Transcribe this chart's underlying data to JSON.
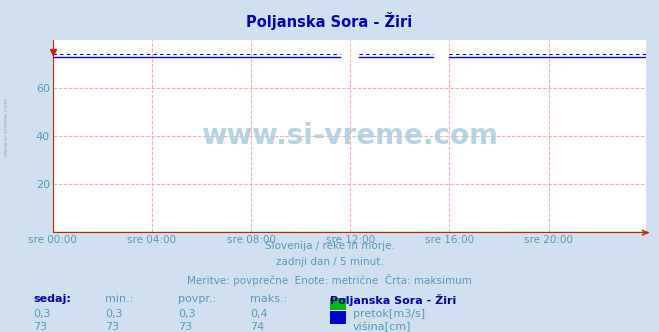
{
  "title": "Poljanska Sora - Žiri",
  "title_color": "#0000bb",
  "bg_color": "#d0e0f0",
  "plot_bg_color": "#ffffff",
  "grid_color": "#ffaaaa",
  "xlabel_color": "#5599bb",
  "ylabel_color": "#5599bb",
  "axis_color": "#cc2200",
  "watermark": "www.si-vreme.com",
  "watermark_color": "#aaccdd",
  "subtitle_line1": "Slovenija / reke in morje.",
  "subtitle_line2": "zadnji dan / 5 minut.",
  "subtitle_line3": "Meritve: povprečne  Enote: metrične  Črta: maksimum",
  "subtitle_color": "#5599bb",
  "n_points": 288,
  "flow_value": 0.3,
  "flow_max": 0.4,
  "flow_color": "#00bb00",
  "height_value": 73,
  "height_max": 74,
  "height_color": "#0000cc",
  "ylim": [
    0,
    80
  ],
  "yticks": [
    20,
    40,
    60
  ],
  "xtick_labels": [
    "sre 00:00",
    "sre 04:00",
    "sre 08:00",
    "sre 12:00",
    "sre 16:00",
    "sre 20:00"
  ],
  "xtick_positions": [
    0,
    48,
    96,
    144,
    192,
    240
  ],
  "legend_title": "Poljanska Sora - Žiri",
  "legend_items": [
    {
      "label": "pretok[m3/s]",
      "color": "#00bb00"
    },
    {
      "label": "višina[cm]",
      "color": "#0000cc"
    }
  ],
  "table_headers": [
    "sedaj:",
    "min.:",
    "povpr.:",
    "maks.:"
  ],
  "table_rows": [
    [
      "0,3",
      "0,3",
      "0,3",
      "0,4"
    ],
    [
      "73",
      "73",
      "73",
      "74"
    ]
  ],
  "table_color": "#5599bb",
  "bold_color": "#0000aa",
  "gap1_start": 140,
  "gap1_end": 148,
  "gap2_start": 185,
  "gap2_end": 192,
  "gap3_start": 220,
  "gap3_end": 228
}
